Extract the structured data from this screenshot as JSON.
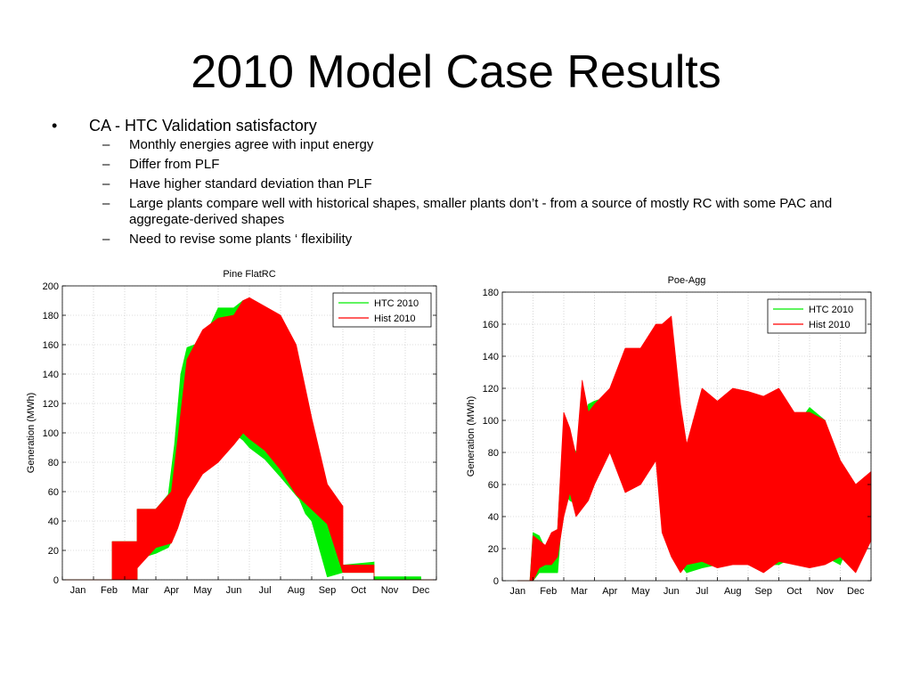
{
  "slide": {
    "title": "2010 Model Case Results",
    "bullet": "CA - HTC Validation satisfactory",
    "bullet_marker": "•",
    "sub_marker": "–",
    "sub_items": [
      "Monthly energies agree  with input energy",
      "Differ from PLF",
      "Have higher standard deviation than PLF",
      "Large plants compare well with historical shapes, smaller plants don’t  - from a source of mostly RC with some PAC and aggregate-derived shapes",
      "Need to revise some plants ‘ flexibility"
    ]
  },
  "chart_data": [
    {
      "type": "area",
      "title": "Pine FlatRC",
      "xlabel": "",
      "ylabel": "Generation (MWh)",
      "x_ticks": [
        "Jan",
        "Feb",
        "Mar",
        "Apr",
        "May",
        "Jun",
        "Jul",
        "Aug",
        "Sep",
        "Oct",
        "Nov",
        "Dec"
      ],
      "xlim": [
        0,
        12
      ],
      "ylim": [
        0,
        200
      ],
      "y_ticks": [
        0,
        20,
        40,
        60,
        80,
        100,
        120,
        140,
        160,
        180,
        200
      ],
      "grid": true,
      "legend": "top-right",
      "series": [
        {
          "name": "HTC 2010",
          "color": "#00ee00",
          "x": [
            0,
            1.6,
            1.6,
            2.4,
            2.4,
            3.0,
            3.4,
            3.6,
            3.8,
            4.0,
            4.5,
            5.0,
            5.5,
            5.8,
            6.0,
            6.5,
            7.0,
            7.6,
            7.8,
            8.0,
            8.5,
            9.0,
            10.0,
            10.0,
            11.5,
            11.5,
            12.0
          ],
          "high": [
            0,
            0,
            26,
            26,
            48,
            48,
            58,
            92,
            140,
            158,
            162,
            185,
            185,
            190,
            182,
            178,
            176,
            112,
            100,
            60,
            55,
            10,
            12,
            2,
            2,
            0,
            0
          ],
          "low": [
            0,
            0,
            0,
            0,
            14,
            18,
            22,
            30,
            45,
            75,
            90,
            97,
            100,
            95,
            90,
            82,
            70,
            55,
            45,
            40,
            2,
            5,
            5,
            0,
            0,
            0,
            0
          ]
        },
        {
          "name": "Hist 2010",
          "color": "#ff0000",
          "x": [
            0,
            1.6,
            1.6,
            2.4,
            2.4,
            3.0,
            3.5,
            3.7,
            4.0,
            4.5,
            5.0,
            5.5,
            5.8,
            6.0,
            6.5,
            7.0,
            7.5,
            8.0,
            8.5,
            9.0,
            9.0,
            10.0,
            10.0,
            11.5,
            11.5,
            12.0
          ],
          "high": [
            0,
            0,
            26,
            26,
            48,
            48,
            60,
            95,
            150,
            170,
            178,
            180,
            190,
            192,
            186,
            180,
            160,
            110,
            65,
            50,
            10,
            10,
            0,
            0,
            0,
            0
          ],
          "low": [
            0,
            0,
            0,
            0,
            8,
            22,
            25,
            35,
            55,
            72,
            80,
            92,
            100,
            96,
            88,
            75,
            58,
            48,
            38,
            5,
            5,
            5,
            0,
            0,
            0,
            0
          ]
        }
      ]
    },
    {
      "type": "area",
      "title": "Poe-Agg",
      "xlabel": "",
      "ylabel": "Generation (MWh)",
      "x_ticks": [
        "Jan",
        "Feb",
        "Mar",
        "Apr",
        "May",
        "Jun",
        "Jul",
        "Aug",
        "Sep",
        "Oct",
        "Nov",
        "Dec"
      ],
      "xlim": [
        0,
        12
      ],
      "ylim": [
        0,
        180
      ],
      "y_ticks": [
        0,
        20,
        40,
        60,
        80,
        100,
        120,
        140,
        160,
        180
      ],
      "grid": true,
      "legend": "top-right",
      "series": [
        {
          "name": "HTC 2010",
          "color": "#00ee00",
          "x": [
            0.5,
            0.5,
            0.9,
            1.0,
            1.2,
            1.4,
            1.6,
            1.8,
            2.0,
            2.2,
            2.4,
            2.6,
            2.8,
            3.0,
            3.5,
            4.0,
            4.5,
            5.0,
            5.2,
            5.5,
            5.8,
            6.0,
            6.5,
            7.0,
            7.5,
            8.0,
            8.5,
            9.0,
            9.5,
            10.0,
            10.5,
            11.0,
            11.5,
            12.0
          ],
          "high": [
            0,
            0,
            0,
            30,
            28,
            20,
            25,
            32,
            100,
            88,
            80,
            95,
            110,
            112,
            115,
            120,
            122,
            135,
            130,
            120,
            90,
            80,
            108,
            112,
            110,
            110,
            112,
            105,
            95,
            108,
            100,
            72,
            55,
            60
          ],
          "low": [
            0,
            0,
            0,
            0,
            5,
            5,
            5,
            5,
            55,
            50,
            48,
            55,
            75,
            80,
            90,
            92,
            88,
            75,
            60,
            55,
            10,
            5,
            8,
            10,
            12,
            15,
            10,
            10,
            15,
            12,
            15,
            10,
            35,
            40
          ]
        },
        {
          "name": "Hist 2010",
          "color": "#ff0000",
          "x": [
            0.5,
            0.5,
            0.9,
            1.0,
            1.2,
            1.4,
            1.6,
            1.8,
            2.0,
            2.2,
            2.4,
            2.6,
            2.8,
            3.0,
            3.5,
            4.0,
            4.5,
            5.0,
            5.2,
            5.5,
            5.8,
            6.0,
            6.5,
            7.0,
            7.5,
            8.0,
            8.5,
            9.0,
            9.5,
            10.0,
            10.5,
            11.0,
            11.5,
            12.0
          ],
          "high": [
            0,
            0,
            0,
            28,
            25,
            22,
            30,
            32,
            105,
            95,
            78,
            125,
            105,
            110,
            120,
            145,
            145,
            160,
            160,
            165,
            110,
            85,
            120,
            112,
            120,
            118,
            115,
            120,
            105,
            105,
            100,
            75,
            60,
            68
          ],
          "low": [
            0,
            0,
            0,
            0,
            8,
            10,
            10,
            15,
            40,
            55,
            40,
            45,
            50,
            60,
            80,
            55,
            60,
            75,
            30,
            15,
            5,
            10,
            12,
            8,
            10,
            10,
            5,
            12,
            10,
            8,
            10,
            15,
            5,
            25
          ]
        }
      ]
    }
  ]
}
